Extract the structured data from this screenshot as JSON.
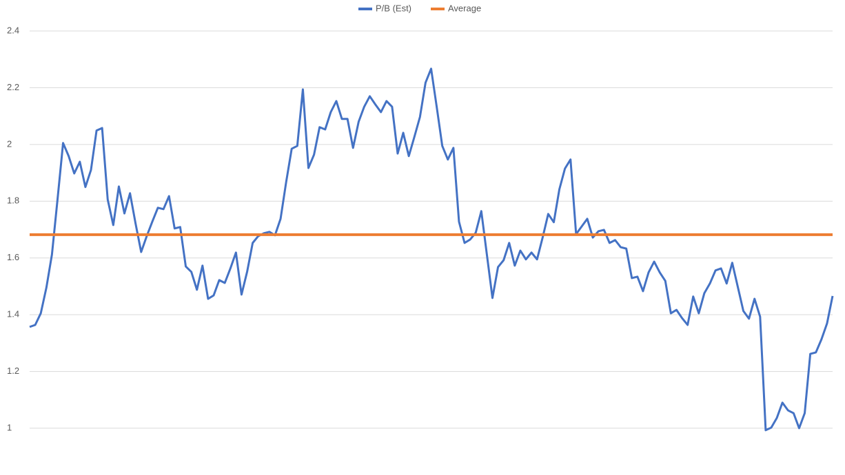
{
  "chart_data": {
    "type": "line",
    "ylim": [
      1,
      2.4
    ],
    "yticks": [
      1,
      1.2,
      1.4,
      1.6,
      1.8,
      2,
      2.2,
      2.4
    ],
    "grid": true,
    "legend": "top",
    "series": [
      {
        "name": "P/B (Est)",
        "color": "#4472c4",
        "values": [
          1.357,
          1.364,
          1.405,
          1.495,
          1.612,
          1.806,
          2.005,
          1.959,
          1.898,
          1.939,
          1.85,
          1.91,
          2.049,
          2.058,
          1.806,
          1.716,
          1.852,
          1.757,
          1.828,
          1.721,
          1.621,
          1.677,
          1.728,
          1.777,
          1.772,
          1.818,
          1.704,
          1.709,
          1.57,
          1.551,
          1.488,
          1.573,
          1.456,
          1.468,
          1.522,
          1.512,
          1.563,
          1.619,
          1.471,
          1.551,
          1.653,
          1.677,
          1.687,
          1.692,
          1.68,
          1.738,
          1.867,
          1.985,
          1.995,
          2.194,
          1.917,
          1.964,
          2.061,
          2.053,
          2.114,
          2.153,
          2.09,
          2.09,
          1.988,
          2.08,
          2.133,
          2.17,
          2.141,
          2.114,
          2.153,
          2.133,
          1.968,
          2.041,
          1.959,
          2.027,
          2.097,
          2.218,
          2.267,
          2.133,
          1.995,
          1.947,
          1.988,
          1.728,
          1.653,
          1.665,
          1.689,
          1.765,
          1.612,
          1.459,
          1.568,
          1.592,
          1.653,
          1.573,
          1.626,
          1.595,
          1.619,
          1.595,
          1.672,
          1.755,
          1.726,
          1.842,
          1.915,
          1.947,
          1.684,
          1.711,
          1.738,
          1.672,
          1.694,
          1.699,
          1.653,
          1.663,
          1.638,
          1.633,
          1.529,
          1.534,
          1.483,
          1.549,
          1.587,
          1.549,
          1.519,
          1.405,
          1.417,
          1.388,
          1.364,
          1.464,
          1.405,
          1.476,
          1.51,
          1.556,
          1.563,
          1.51,
          1.583,
          1.498,
          1.413,
          1.386,
          1.456,
          1.393,
          0.993,
          1.002,
          1.036,
          1.09,
          1.063,
          1.053,
          1.0,
          1.053,
          1.262,
          1.267,
          1.313,
          1.369,
          1.466
        ]
      },
      {
        "name": "Average",
        "color": "#ed7d31",
        "values": [
          1.682
        ]
      }
    ]
  }
}
